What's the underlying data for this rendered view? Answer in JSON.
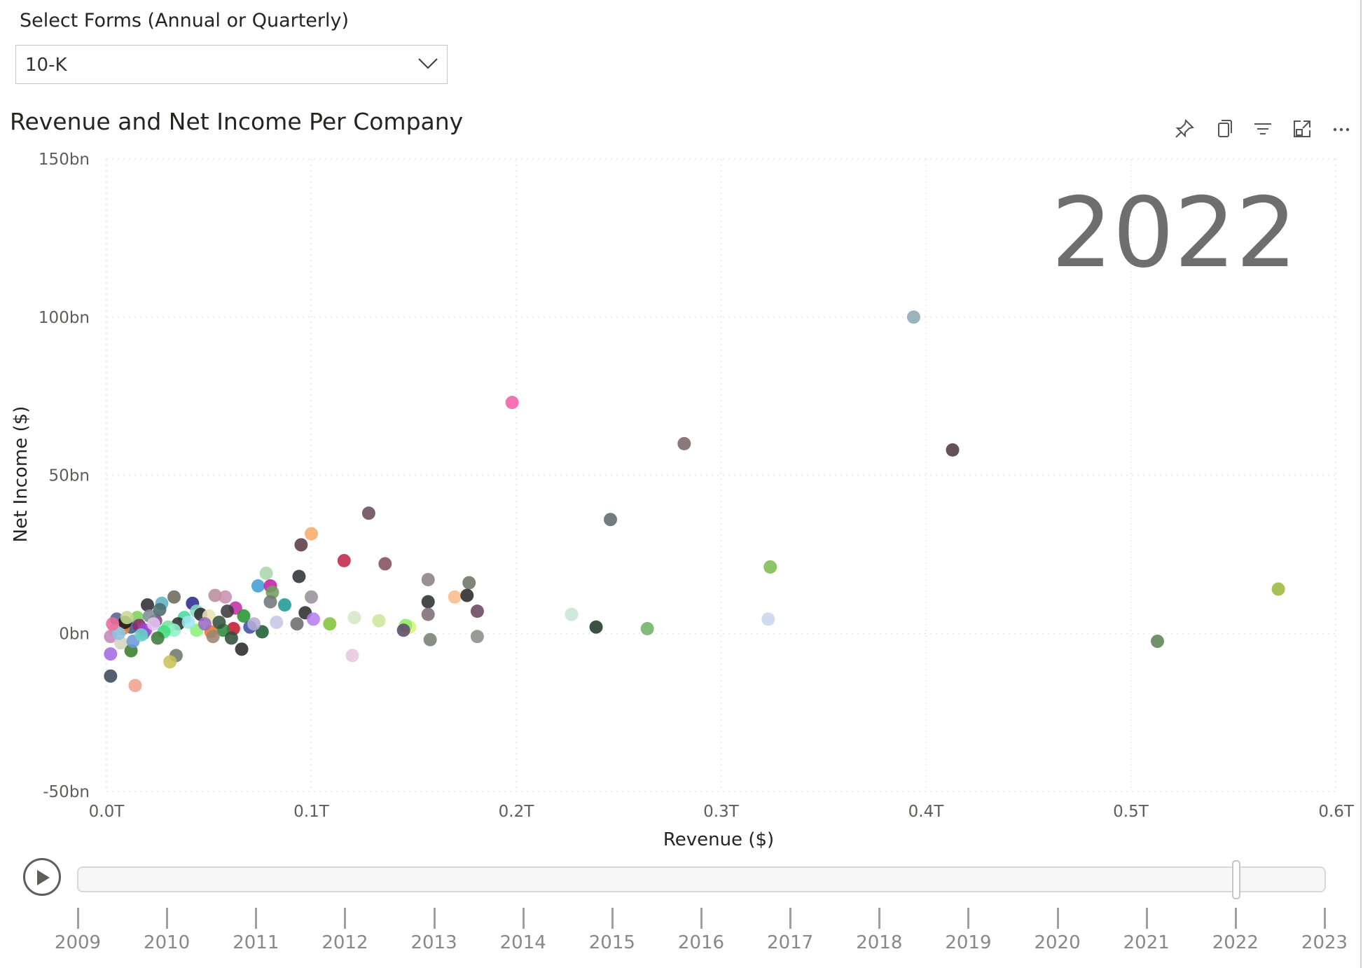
{
  "slicer": {
    "title": "Select Forms (Annual or Quarterly)",
    "value": "10-K"
  },
  "chart_title": "Revenue and Net Income Per Company",
  "header_icons": [
    "pin-icon",
    "copy-icon",
    "filter-icon",
    "focus-mode-icon",
    "more-options-icon"
  ],
  "chart_data": {
    "type": "scatter",
    "title": "Revenue and Net Income Per Company",
    "xlabel": "Revenue ($)",
    "ylabel": "Net Income ($)",
    "xlim": [
      0,
      0.6
    ],
    "ylim": [
      -50,
      150
    ],
    "x_unit": "T",
    "y_unit": "bn",
    "x_ticks": [
      "0.0T",
      "0.1T",
      "0.2T",
      "0.3T",
      "0.4T",
      "0.5T",
      "0.6T"
    ],
    "y_ticks": [
      "150bn",
      "100bn",
      "50bn",
      "0bn",
      "-50bn"
    ],
    "grid": true,
    "play_axis_value": "2022",
    "points": [
      {
        "x": 0.394,
        "y": 100,
        "color": "#8ea8b5"
      },
      {
        "x": 0.198,
        "y": 73,
        "color": "#f35fa8"
      },
      {
        "x": 0.282,
        "y": 60,
        "color": "#7a6668"
      },
      {
        "x": 0.413,
        "y": 58,
        "color": "#4f3a40"
      },
      {
        "x": 0.128,
        "y": 38,
        "color": "#6b4a5e"
      },
      {
        "x": 0.246,
        "y": 36,
        "color": "#5d6a70"
      },
      {
        "x": 0.1,
        "y": 31.5,
        "color": "#f8ab6a"
      },
      {
        "x": 0.095,
        "y": 28,
        "color": "#5b3c44"
      },
      {
        "x": 0.116,
        "y": 23,
        "color": "#c2274b"
      },
      {
        "x": 0.136,
        "y": 22,
        "color": "#83505f"
      },
      {
        "x": 0.324,
        "y": 21,
        "color": "#7cbd4e"
      },
      {
        "x": 0.094,
        "y": 18,
        "color": "#2d3436"
      },
      {
        "x": 0.157,
        "y": 17,
        "color": "#8c8084"
      },
      {
        "x": 0.177,
        "y": 16,
        "color": "#6b7466"
      },
      {
        "x": 0.078,
        "y": 19,
        "color": "#a8d7ac"
      },
      {
        "x": 0.074,
        "y": 15,
        "color": "#3f9fd5"
      },
      {
        "x": 0.08,
        "y": 15,
        "color": "#c51ea8"
      },
      {
        "x": 0.081,
        "y": 13,
        "color": "#6fa15a"
      },
      {
        "x": 0.087,
        "y": 9,
        "color": "#1f9a95"
      },
      {
        "x": 0.08,
        "y": 10,
        "color": "#73777a"
      },
      {
        "x": 0.1,
        "y": 11.5,
        "color": "#9b8f9b"
      },
      {
        "x": 0.17,
        "y": 11.5,
        "color": "#f7bd8b"
      },
      {
        "x": 0.176,
        "y": 12,
        "color": "#29292b"
      },
      {
        "x": 0.157,
        "y": 10,
        "color": "#2e3032"
      },
      {
        "x": 0.572,
        "y": 14,
        "color": "#9ab83c"
      },
      {
        "x": 0.181,
        "y": 7,
        "color": "#6c4660"
      },
      {
        "x": 0.157,
        "y": 6,
        "color": "#7d6d74"
      },
      {
        "x": 0.097,
        "y": 6.5,
        "color": "#2e2e30"
      },
      {
        "x": 0.227,
        "y": 6,
        "color": "#c8e6d6"
      },
      {
        "x": 0.323,
        "y": 4.5,
        "color": "#c9d7ea"
      },
      {
        "x": 0.121,
        "y": 5,
        "color": "#d4e8c8"
      },
      {
        "x": 0.133,
        "y": 4,
        "color": "#cde79a"
      },
      {
        "x": 0.101,
        "y": 4.5,
        "color": "#b580ef"
      },
      {
        "x": 0.083,
        "y": 3.5,
        "color": "#c6c6e4"
      },
      {
        "x": 0.109,
        "y": 3,
        "color": "#84c23d"
      },
      {
        "x": 0.148,
        "y": 2,
        "color": "#d7f378"
      },
      {
        "x": 0.146,
        "y": 2.5,
        "color": "#8fe86a"
      },
      {
        "x": 0.093,
        "y": 3,
        "color": "#6c6c6c"
      },
      {
        "x": 0.145,
        "y": 1,
        "color": "#5f4968"
      },
      {
        "x": 0.239,
        "y": 2,
        "color": "#1e3b26"
      },
      {
        "x": 0.264,
        "y": 1.5,
        "color": "#73b06a"
      },
      {
        "x": 0.076,
        "y": 0.5,
        "color": "#1d5e33"
      },
      {
        "x": 0.158,
        "y": -2,
        "color": "#7a7f74"
      },
      {
        "x": 0.181,
        "y": -1,
        "color": "#8a8e87"
      },
      {
        "x": 0.513,
        "y": -2.5,
        "color": "#5c8455"
      },
      {
        "x": 0.12,
        "y": -7,
        "color": "#e9c6df"
      },
      {
        "x": 0.066,
        "y": -5,
        "color": "#2a2a2a"
      },
      {
        "x": 0.034,
        "y": -7,
        "color": "#6c7a6a"
      },
      {
        "x": 0.031,
        "y": -9,
        "color": "#c9c25a"
      },
      {
        "x": 0.012,
        "y": -5.5,
        "color": "#3b7d2b"
      },
      {
        "x": 0.002,
        "y": -6.5,
        "color": "#a46ae2"
      },
      {
        "x": 0.002,
        "y": -13.5,
        "color": "#3c4a5e"
      },
      {
        "x": 0.014,
        "y": -16.5,
        "color": "#f1a28e"
      },
      {
        "x": 0.053,
        "y": 12,
        "color": "#b88d9a"
      },
      {
        "x": 0.058,
        "y": 11.5,
        "color": "#c98fb0"
      },
      {
        "x": 0.033,
        "y": 11.5,
        "color": "#6b6b5b"
      },
      {
        "x": 0.02,
        "y": 9,
        "color": "#2e2e36"
      },
      {
        "x": 0.027,
        "y": 9.5,
        "color": "#5fb3c4"
      },
      {
        "x": 0.042,
        "y": 9.5,
        "color": "#2d2a8f"
      },
      {
        "x": 0.063,
        "y": 8,
        "color": "#c22fa6"
      },
      {
        "x": 0.059,
        "y": 7,
        "color": "#3b3b3b"
      },
      {
        "x": 0.067,
        "y": 5.5,
        "color": "#259532"
      },
      {
        "x": 0.044,
        "y": 7,
        "color": "#8ad8c0"
      },
      {
        "x": 0.046,
        "y": 6,
        "color": "#2c2c2c"
      },
      {
        "x": 0.038,
        "y": 5,
        "color": "#47d9a0"
      },
      {
        "x": 0.05,
        "y": 5.5,
        "color": "#e9e2b5"
      },
      {
        "x": 0.07,
        "y": 2,
        "color": "#3f4fa8"
      },
      {
        "x": 0.062,
        "y": 1.5,
        "color": "#c51a31"
      },
      {
        "x": 0.057,
        "y": 1,
        "color": "#2c8a3f"
      },
      {
        "x": 0.035,
        "y": 3,
        "color": "#313131"
      },
      {
        "x": 0.024,
        "y": 4,
        "color": "#7d4a8a"
      },
      {
        "x": 0.03,
        "y": 2,
        "color": "#79e0a0"
      },
      {
        "x": 0.044,
        "y": 1,
        "color": "#8bf07a"
      },
      {
        "x": 0.033,
        "y": 1,
        "color": "#8ef0cc"
      },
      {
        "x": 0.028,
        "y": 0.5,
        "color": "#3fe07f"
      },
      {
        "x": 0.051,
        "y": 0.5,
        "color": "#e07a2c"
      },
      {
        "x": 0.052,
        "y": -1,
        "color": "#9a8574"
      },
      {
        "x": 0.061,
        "y": -1.5,
        "color": "#2f4f3a"
      },
      {
        "x": 0.018,
        "y": 0,
        "color": "#4fa869"
      },
      {
        "x": 0.012,
        "y": 2,
        "color": "#3a5a7f"
      },
      {
        "x": 0.008,
        "y": 1.5,
        "color": "#e7843f"
      },
      {
        "x": 0.005,
        "y": 4.5,
        "color": "#56618f"
      },
      {
        "x": 0.004,
        "y": 1,
        "color": "#f4b7b0"
      },
      {
        "x": 0.002,
        "y": -1,
        "color": "#c58ab8"
      },
      {
        "x": 0.007,
        "y": -3,
        "color": "#d4d4c0"
      },
      {
        "x": 0.013,
        "y": -2.5,
        "color": "#6c9ad6"
      },
      {
        "x": 0.015,
        "y": 5,
        "color": "#7cd15b"
      },
      {
        "x": 0.016,
        "y": 2.5,
        "color": "#8a2a73"
      },
      {
        "x": 0.019,
        "y": 1,
        "color": "#a43de0"
      },
      {
        "x": 0.021,
        "y": 5.5,
        "color": "#7f8c94"
      },
      {
        "x": 0.023,
        "y": 3,
        "color": "#e2c4f0"
      },
      {
        "x": 0.025,
        "y": -1.5,
        "color": "#3d7a3a"
      },
      {
        "x": 0.009,
        "y": 3.5,
        "color": "#1a1a1a"
      },
      {
        "x": 0.006,
        "y": 0,
        "color": "#8ac4e0"
      },
      {
        "x": 0.026,
        "y": 7.5,
        "color": "#4a6b6e"
      },
      {
        "x": 0.04,
        "y": 3.5,
        "color": "#a0e6ee"
      },
      {
        "x": 0.048,
        "y": 3,
        "color": "#9b6ac4"
      },
      {
        "x": 0.055,
        "y": 3.5,
        "color": "#36523c"
      },
      {
        "x": 0.072,
        "y": 3,
        "color": "#b9acd5"
      },
      {
        "x": 0.01,
        "y": 5,
        "color": "#c6d98f"
      },
      {
        "x": 0.003,
        "y": 3,
        "color": "#e96b9c"
      },
      {
        "x": 0.017,
        "y": -0.5,
        "color": "#6bd1c9"
      }
    ]
  },
  "play_axis": {
    "current_year": "2022",
    "current_fraction": 0.929,
    "years": [
      "2009",
      "2010",
      "2011",
      "2012",
      "2013",
      "2014",
      "2015",
      "2016",
      "2017",
      "2018",
      "2019",
      "2020",
      "2021",
      "2022",
      "2023"
    ]
  }
}
